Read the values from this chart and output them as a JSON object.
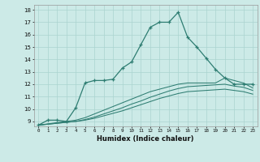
{
  "xlabel": "Humidex (Indice chaleur)",
  "bg_color": "#cceae7",
  "grid_color": "#aad4d0",
  "line_color": "#2e7d72",
  "xlim": [
    -0.5,
    23.5
  ],
  "ylim": [
    8.6,
    18.4
  ],
  "xticks": [
    0,
    1,
    2,
    3,
    4,
    5,
    6,
    7,
    8,
    9,
    10,
    11,
    12,
    13,
    14,
    15,
    16,
    17,
    18,
    19,
    20,
    21,
    22,
    23
  ],
  "yticks": [
    9,
    10,
    11,
    12,
    13,
    14,
    15,
    16,
    17,
    18
  ],
  "line1_x": [
    0,
    1,
    2,
    3,
    4,
    5,
    6,
    7,
    8,
    9,
    10,
    11,
    12,
    13,
    14,
    15,
    16,
    17,
    18,
    19,
    20,
    21,
    22,
    23
  ],
  "line1_y": [
    8.7,
    9.1,
    9.1,
    9.0,
    10.1,
    12.1,
    12.3,
    12.3,
    12.4,
    13.3,
    13.8,
    15.2,
    16.6,
    17.0,
    17.0,
    17.8,
    15.8,
    15.0,
    14.1,
    13.2,
    12.5,
    12.0,
    12.0,
    12.0
  ],
  "line2_x": [
    0,
    4,
    5,
    6,
    7,
    8,
    9,
    10,
    11,
    12,
    13,
    14,
    15,
    16,
    17,
    18,
    19,
    20,
    21,
    22,
    23
  ],
  "line2_y": [
    8.7,
    9.1,
    9.3,
    9.6,
    9.9,
    10.2,
    10.5,
    10.8,
    11.1,
    11.4,
    11.6,
    11.8,
    12.0,
    12.1,
    12.1,
    12.1,
    12.1,
    12.5,
    12.3,
    12.1,
    11.7
  ],
  "line3_x": [
    0,
    4,
    5,
    6,
    7,
    8,
    9,
    10,
    11,
    12,
    13,
    14,
    15,
    16,
    17,
    18,
    19,
    20,
    21,
    22,
    23
  ],
  "line3_y": [
    8.7,
    9.0,
    9.15,
    9.35,
    9.6,
    9.85,
    10.1,
    10.4,
    10.65,
    10.95,
    11.2,
    11.45,
    11.65,
    11.8,
    11.85,
    11.9,
    11.95,
    12.0,
    11.85,
    11.75,
    11.5
  ],
  "line4_x": [
    0,
    4,
    5,
    6,
    7,
    8,
    9,
    10,
    11,
    12,
    13,
    14,
    15,
    16,
    17,
    18,
    19,
    20,
    21,
    22,
    23
  ],
  "line4_y": [
    8.7,
    9.0,
    9.1,
    9.25,
    9.45,
    9.65,
    9.85,
    10.1,
    10.35,
    10.6,
    10.85,
    11.05,
    11.25,
    11.4,
    11.45,
    11.5,
    11.55,
    11.6,
    11.5,
    11.4,
    11.2
  ]
}
